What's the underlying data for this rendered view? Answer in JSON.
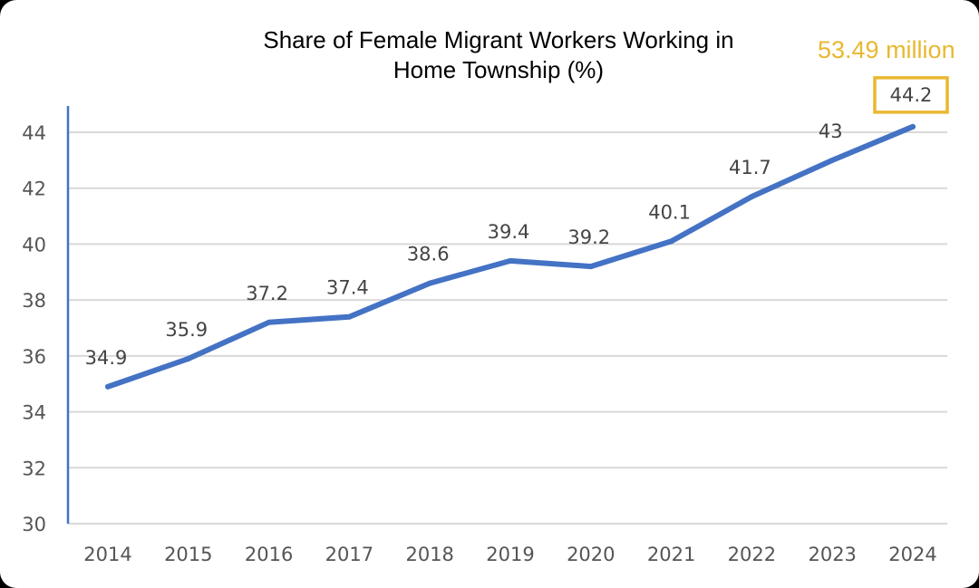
{
  "colors": {
    "line": "#4472C4",
    "highlight": "#E8B830",
    "grid": "#D9D9D9",
    "axis": "#4472C4"
  },
  "annotation": "53.49 million",
  "chart_data": {
    "type": "line",
    "title_lines": [
      "Share of Female Migrant Workers Working in",
      "Home Township (%)"
    ],
    "categories": [
      "2014",
      "2015",
      "2016",
      "2017",
      "2018",
      "2019",
      "2020",
      "2021",
      "2022",
      "2023",
      "2024"
    ],
    "values": [
      34.9,
      35.9,
      37.2,
      37.4,
      38.6,
      39.4,
      39.2,
      40.1,
      41.7,
      43,
      44.2
    ],
    "data_labels": [
      "34.9",
      "35.9",
      "37.2",
      "37.4",
      "38.6",
      "39.4",
      "39.2",
      "40.1",
      "41.7",
      "43",
      "44.2"
    ],
    "highlighted_point": "2024",
    "ylim": [
      30,
      44
    ],
    "yticks": [
      "30",
      "32",
      "34",
      "36",
      "38",
      "40",
      "42",
      "44"
    ],
    "grid": true,
    "xlabel": "",
    "ylabel": ""
  }
}
